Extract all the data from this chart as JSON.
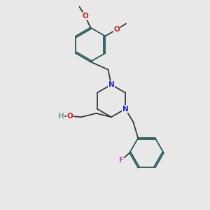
{
  "background_color": "#e8e8e8",
  "bond_color": "#3a3a3a",
  "ring_bond_color": "#2a5a5a",
  "atom_colors": {
    "N": "#2222cc",
    "O": "#cc2222",
    "F": "#cc44cc",
    "H": "#7a9a9a",
    "C": "#3a3a3a"
  },
  "lw": 1.3
}
